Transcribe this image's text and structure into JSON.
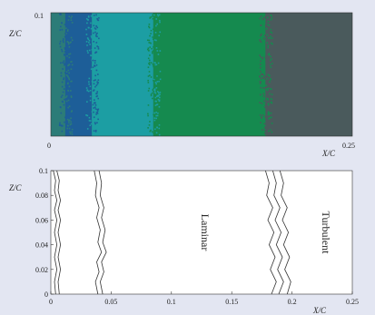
{
  "chart_data": [
    {
      "type": "heatmap",
      "xlabel": "X/C",
      "ylabel": "Z/C",
      "xlim": [
        0,
        0.25
      ],
      "ylim": [
        0,
        0.1
      ],
      "x_tick_labels": [
        "0",
        "0.25"
      ],
      "y_tick_labels": [
        "0.1"
      ],
      "legend": "none",
      "grid": false,
      "colors": {
        "background_plot": "#2e6b57",
        "band_blue": "#1d5e98",
        "band_teal": "#1c9ea3",
        "band_green": "#158a4f",
        "band_grey": "#4a5a5c"
      },
      "regions": [
        {
          "x_start": 0.0,
          "x_end": 0.012,
          "color": "#2c7c78"
        },
        {
          "x_start": 0.012,
          "x_end": 0.034,
          "color": "#1d5e98"
        },
        {
          "x_start": 0.034,
          "x_end": 0.085,
          "color": "#1c9ea3"
        },
        {
          "x_start": 0.085,
          "x_end": 0.178,
          "color": "#158a4f"
        },
        {
          "x_start": 0.178,
          "x_end": 0.25,
          "color": "#4a5a5c"
        }
      ]
    },
    {
      "type": "line",
      "xlabel": "X/C",
      "ylabel": "Z/C",
      "xlim": [
        0,
        0.25
      ],
      "ylim": [
        0,
        0.1
      ],
      "x_ticks": [
        0,
        0.05,
        0.1,
        0.15,
        0.2,
        0.25
      ],
      "x_tick_labels": [
        "0",
        "0.05",
        "0.1",
        "0.15",
        "0.2",
        "0.25"
      ],
      "y_ticks": [
        0,
        0.02,
        0.04,
        0.06,
        0.08,
        0.1
      ],
      "y_tick_labels": [
        "0",
        "0.02",
        "0.04",
        "0.06",
        "0.08",
        "0.1"
      ],
      "legend": "none",
      "grid": false,
      "annotations": [
        {
          "text": "Laminar",
          "x": 0.125,
          "y": 0.05,
          "rotation": -90
        },
        {
          "text": "Turbulent",
          "x": 0.225,
          "y": 0.05,
          "rotation": -90
        }
      ],
      "series": [
        {
          "values": [
            [
              0.002,
              0.1
            ],
            [
              0.004,
              0.092
            ],
            [
              0.003,
              0.084
            ],
            [
              0.005,
              0.076
            ],
            [
              0.003,
              0.068
            ],
            [
              0.005,
              0.06
            ],
            [
              0.003,
              0.05
            ],
            [
              0.005,
              0.04
            ],
            [
              0.003,
              0.03
            ],
            [
              0.005,
              0.02
            ],
            [
              0.003,
              0.01
            ],
            [
              0.004,
              0.0
            ]
          ]
        },
        {
          "values": [
            [
              0.005,
              0.1
            ],
            [
              0.007,
              0.092
            ],
            [
              0.006,
              0.084
            ],
            [
              0.008,
              0.076
            ],
            [
              0.006,
              0.068
            ],
            [
              0.008,
              0.06
            ],
            [
              0.006,
              0.05
            ],
            [
              0.008,
              0.04
            ],
            [
              0.006,
              0.03
            ],
            [
              0.008,
              0.02
            ],
            [
              0.006,
              0.01
            ],
            [
              0.007,
              0.0
            ]
          ]
        },
        {
          "values": [
            [
              0.036,
              0.1
            ],
            [
              0.038,
              0.09
            ],
            [
              0.037,
              0.08
            ],
            [
              0.04,
              0.07
            ],
            [
              0.038,
              0.062
            ],
            [
              0.041,
              0.052
            ],
            [
              0.039,
              0.042
            ],
            [
              0.042,
              0.034
            ],
            [
              0.038,
              0.026
            ],
            [
              0.04,
              0.018
            ],
            [
              0.037,
              0.01
            ],
            [
              0.039,
              0.0
            ]
          ]
        },
        {
          "values": [
            [
              0.04,
              0.1
            ],
            [
              0.042,
              0.09
            ],
            [
              0.041,
              0.08
            ],
            [
              0.044,
              0.07
            ],
            [
              0.042,
              0.062
            ],
            [
              0.045,
              0.052
            ],
            [
              0.043,
              0.042
            ],
            [
              0.046,
              0.034
            ],
            [
              0.042,
              0.026
            ],
            [
              0.044,
              0.018
            ],
            [
              0.041,
              0.01
            ],
            [
              0.043,
              0.0
            ]
          ]
        },
        {
          "values": [
            [
              0.178,
              0.1
            ],
            [
              0.181,
              0.09
            ],
            [
              0.179,
              0.08
            ],
            [
              0.184,
              0.07
            ],
            [
              0.18,
              0.06
            ],
            [
              0.185,
              0.05
            ],
            [
              0.181,
              0.04
            ],
            [
              0.186,
              0.03
            ],
            [
              0.182,
              0.02
            ],
            [
              0.187,
              0.01
            ],
            [
              0.183,
              0.0
            ]
          ]
        },
        {
          "values": [
            [
              0.184,
              0.1
            ],
            [
              0.187,
              0.09
            ],
            [
              0.185,
              0.08
            ],
            [
              0.19,
              0.07
            ],
            [
              0.186,
              0.06
            ],
            [
              0.191,
              0.05
            ],
            [
              0.187,
              0.04
            ],
            [
              0.192,
              0.03
            ],
            [
              0.188,
              0.02
            ],
            [
              0.193,
              0.01
            ],
            [
              0.189,
              0.0
            ]
          ]
        },
        {
          "values": [
            [
              0.19,
              0.1
            ],
            [
              0.193,
              0.09
            ],
            [
              0.191,
              0.08
            ],
            [
              0.196,
              0.07
            ],
            [
              0.192,
              0.06
            ],
            [
              0.197,
              0.05
            ],
            [
              0.193,
              0.04
            ],
            [
              0.198,
              0.03
            ],
            [
              0.194,
              0.02
            ],
            [
              0.199,
              0.01
            ],
            [
              0.196,
              0.0
            ]
          ]
        }
      ]
    }
  ]
}
